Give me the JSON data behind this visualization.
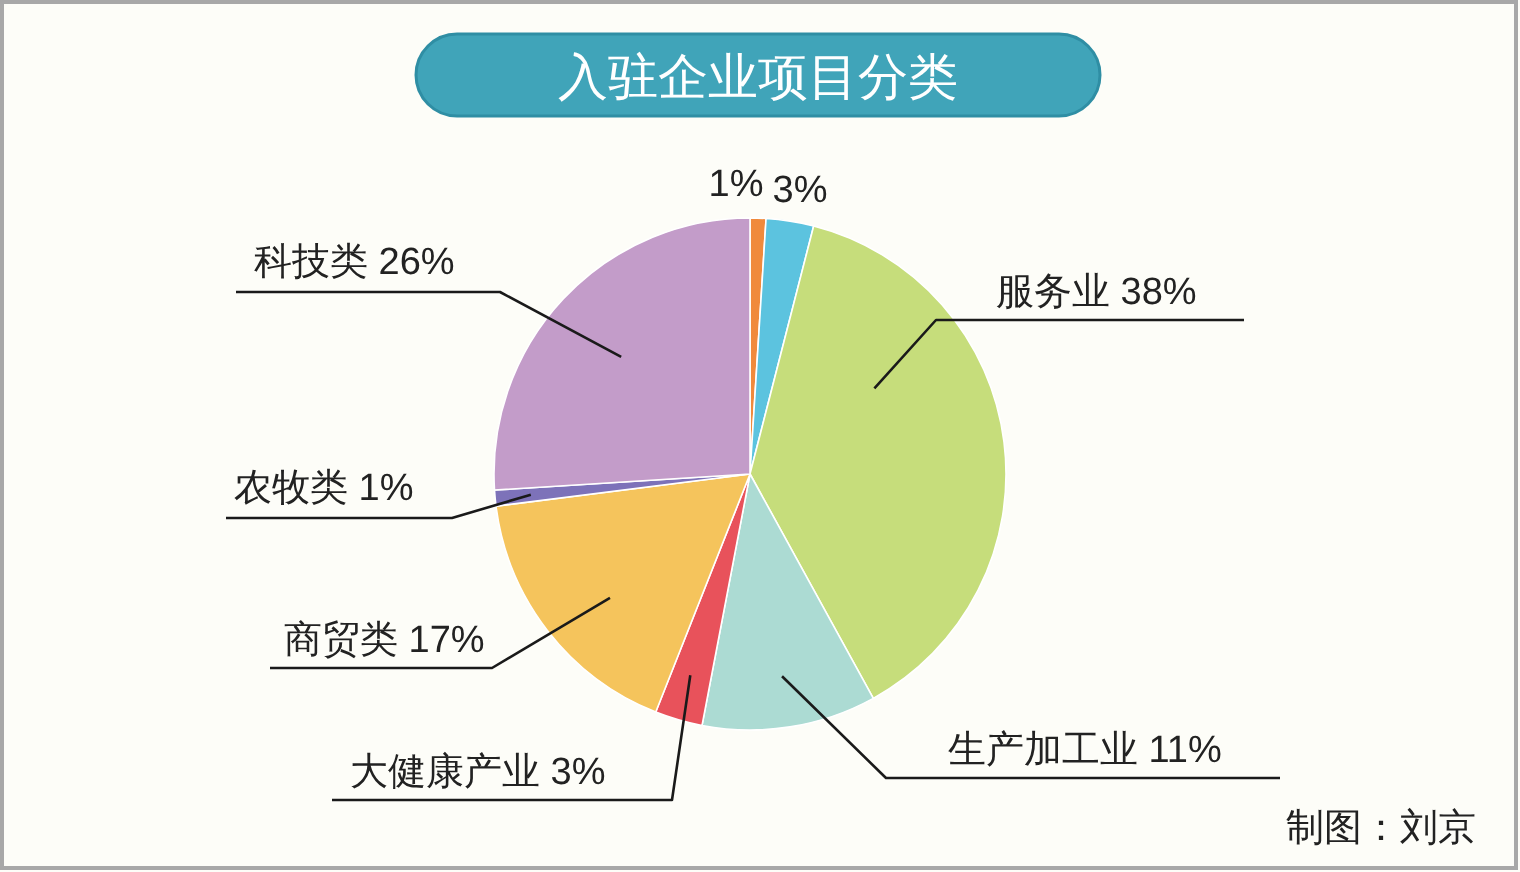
{
  "chart_data": {
    "type": "pie",
    "title": "入驻企业项目分类",
    "categories": [
      null,
      null,
      "服务业",
      "生产加工业",
      "大健康产业",
      "商贸类",
      "农牧类",
      "科技类"
    ],
    "values": [
      1,
      3,
      38,
      11,
      3,
      17,
      1,
      26
    ],
    "colors": [
      "#f08a3c",
      "#5cc3df",
      "#c6dd7b",
      "#acdbd3",
      "#e8525b",
      "#f5c45c",
      "#7d72b9",
      "#c39cc9"
    ],
    "value_labels": [
      "1%",
      "3%",
      "38%",
      "11%",
      "3%",
      "17%",
      "1%",
      "26%"
    ],
    "annotations": [
      "制图：刘京"
    ]
  }
}
